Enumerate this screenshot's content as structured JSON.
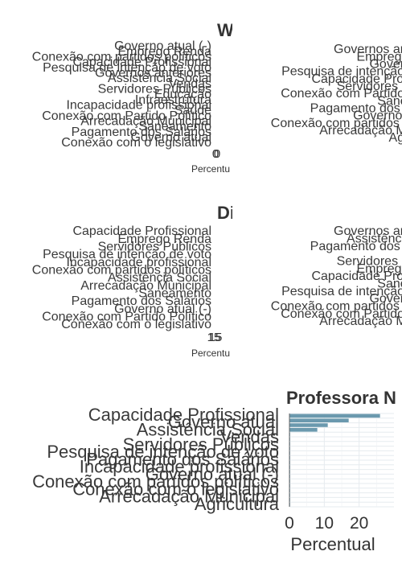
{
  "chart_data": [
    {
      "type": "bar",
      "title": "W",
      "xlabel": "Percentu",
      "ylabel": "",
      "xlim": [
        0,
        1
      ],
      "x_ticks": [
        "0"
      ],
      "categories": [
        "Governo atual (-)",
        "Emprego Renda",
        "Conexão com partidos políticos",
        "Capacidade Profissional",
        "Pesquisa de intenção de voto",
        "Governos anteriores",
        "Assistência Social",
        "Vendas",
        "Servidores Públicos",
        "Educação",
        "Infraestrutura",
        "Incapacidade profissional",
        "Saúde",
        "Conexão com Partido Político",
        "Arrecadação Municipal",
        "Saneamento",
        "Pagamento dos Salários",
        "Governo atual",
        "Conexão com o legislativo"
      ],
      "values": [
        0.1,
        0.1,
        0.1,
        0.1,
        0.1,
        0.1,
        0.1,
        0.1,
        0.1,
        0.1,
        0.1,
        0.1,
        0.1,
        0.1,
        0.1,
        0.1,
        0.1,
        0.1,
        0.1
      ]
    },
    {
      "type": "bar",
      "title": "",
      "xlabel": "",
      "ylabel": "",
      "categories": [
        "Governos anteriores",
        "Emprego Renda",
        "Governo atual",
        "Pesquisa de intenção de voto",
        "Capacidade Profissional",
        "Servidores Públicos",
        "Conexão com Partido Político",
        "Saneamento",
        "Pagamento dos Salários",
        "Governo atual (-)",
        "Conexão com partidos políticos",
        "Arrecadação Municipal",
        "Agricultura"
      ],
      "values": [
        0.1,
        0.1,
        0.1,
        0.1,
        0.1,
        0.1,
        0.1,
        0.1,
        0.1,
        0.1,
        0.1,
        0.1,
        0.1
      ]
    },
    {
      "type": "bar",
      "title": "Di",
      "xlabel": "Percentu",
      "ylabel": "",
      "x_ticks": [
        "15"
      ],
      "categories": [
        "Capacidade Profissional",
        "Emprego Renda",
        "Servidores Públicos",
        "Pesquisa de intenção de voto",
        "Incapacidade profissional",
        "Conexão com partidos políticos",
        "Assistência Social",
        "Arrecadação Municipal",
        "Saneamento",
        "Pagamento dos Salários",
        "Governo atual (-)",
        "Conexão com Partido Político",
        "Conexão com o legislativo"
      ],
      "values": [
        0.1,
        0.1,
        0.1,
        0.1,
        0.1,
        0.1,
        0.1,
        0.1,
        0.1,
        0.1,
        0.1,
        0.1,
        0.1
      ]
    },
    {
      "type": "bar",
      "title": "",
      "xlabel": "",
      "ylabel": "",
      "categories": [
        "Governos anteriores",
        "Assistência Social",
        "Pagamento dos Salários",
        "Vendas",
        "Servidores Públicos",
        "Emprego Renda",
        "Capacidade Profissional",
        "Saneamento",
        "Pesquisa de intenção de voto",
        "Governo atual",
        "Conexão com partidos políticos",
        "Conexão com Partido Político",
        "Arrecadação Municipal"
      ],
      "values": [
        0.1,
        0.1,
        0.1,
        0.1,
        0.1,
        0.1,
        0.1,
        0.1,
        0.1,
        0.1,
        0.1,
        0.1,
        0.1
      ]
    },
    {
      "type": "bar",
      "title": "",
      "xlabel": "",
      "ylabel": "",
      "categories": [
        "Capacidade Profissional",
        "Governo atual",
        "Assistência Social",
        "Vendas",
        "Servidores Públicos",
        "Pesquisa de intenção de voto",
        "Pagamento dos Salários",
        "Incapacidade profissional",
        "Governo atual (-)",
        "Conexão com partidos políticos",
        "Conexão com o legislativo",
        "Arrecadação Municipal",
        "Agricultura"
      ],
      "values": [
        0.1,
        0.1,
        0.1,
        0.1,
        0.1,
        0.1,
        0.1,
        0.1,
        0.1,
        0.1,
        0.1,
        0.1,
        0.1
      ]
    },
    {
      "type": "bar",
      "title": "Professora N",
      "xlabel": "Percentual",
      "ylabel": "",
      "xlim": [
        0,
        30
      ],
      "x_ticks": [
        0,
        10,
        20
      ],
      "bar_color": "#6b99ae",
      "categories": [
        "Capacidade Profissional",
        "Governo atual",
        "Assistência Social",
        "Emprego Renda",
        "Vendas",
        "Servidores Públicos",
        "Educação",
        "Saúde",
        "Pesquisa de intenção de voto",
        "Infraestrutura",
        "Pagamento dos Salários",
        "Saneamento",
        "Incapacidade profissional",
        "Governos anteriores",
        "Governo atual (-)",
        "Conexão com Partido Político",
        "Conexão com partidos políticos",
        "Conexão com o legislativo",
        "Arrecadação Municipal",
        "Agricultura"
      ],
      "values": [
        26,
        17,
        11,
        8,
        0.2,
        0.2,
        0.2,
        0.2,
        0.2,
        0.2,
        0.2,
        0.2,
        0.2,
        0.2,
        0.2,
        0.2,
        0.2,
        0.2,
        0.2,
        0.2
      ]
    }
  ]
}
